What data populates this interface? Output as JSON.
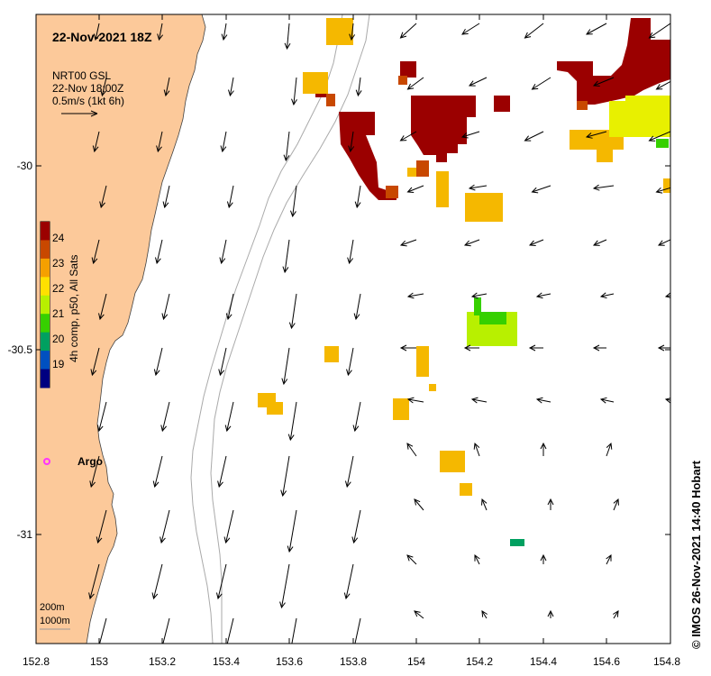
{
  "header": {
    "date_title": "22-Nov-2021 18Z",
    "product": "NRT00 GSL",
    "time": "22-Nov 18:00Z",
    "scale": "0.5m/s (1kt 6h)"
  },
  "colorbar": {
    "label": "4h comp, p50, All Sats",
    "ticks": [
      "24",
      "23",
      "22",
      "21",
      "20",
      "19"
    ],
    "colors": [
      "#9b0000",
      "#c84800",
      "#f5a000",
      "#ffe000",
      "#b8f000",
      "#36d000",
      "#00a060",
      "#0050c0",
      "#000080"
    ]
  },
  "axes": {
    "x_ticks": [
      "152.8",
      "153",
      "153.2",
      "153.4",
      "153.6",
      "153.8",
      "154",
      "154.2",
      "154.4",
      "154.6",
      "154.8"
    ],
    "y_ticks": [
      "-30",
      "-30.5",
      "-31"
    ]
  },
  "markers": {
    "argo_label": "Argo"
  },
  "legend": {
    "contour_200": "200m",
    "contour_1000": "1000m"
  },
  "credit": "© IMOS 26-Nov-2021 14:40 Hobart",
  "colors": {
    "land": "#fcc99a",
    "sst_hot": "#9b0000",
    "sst_warm": "#f5b800",
    "sst_cool": "#3fd63f",
    "argo": "#ff33ff"
  }
}
